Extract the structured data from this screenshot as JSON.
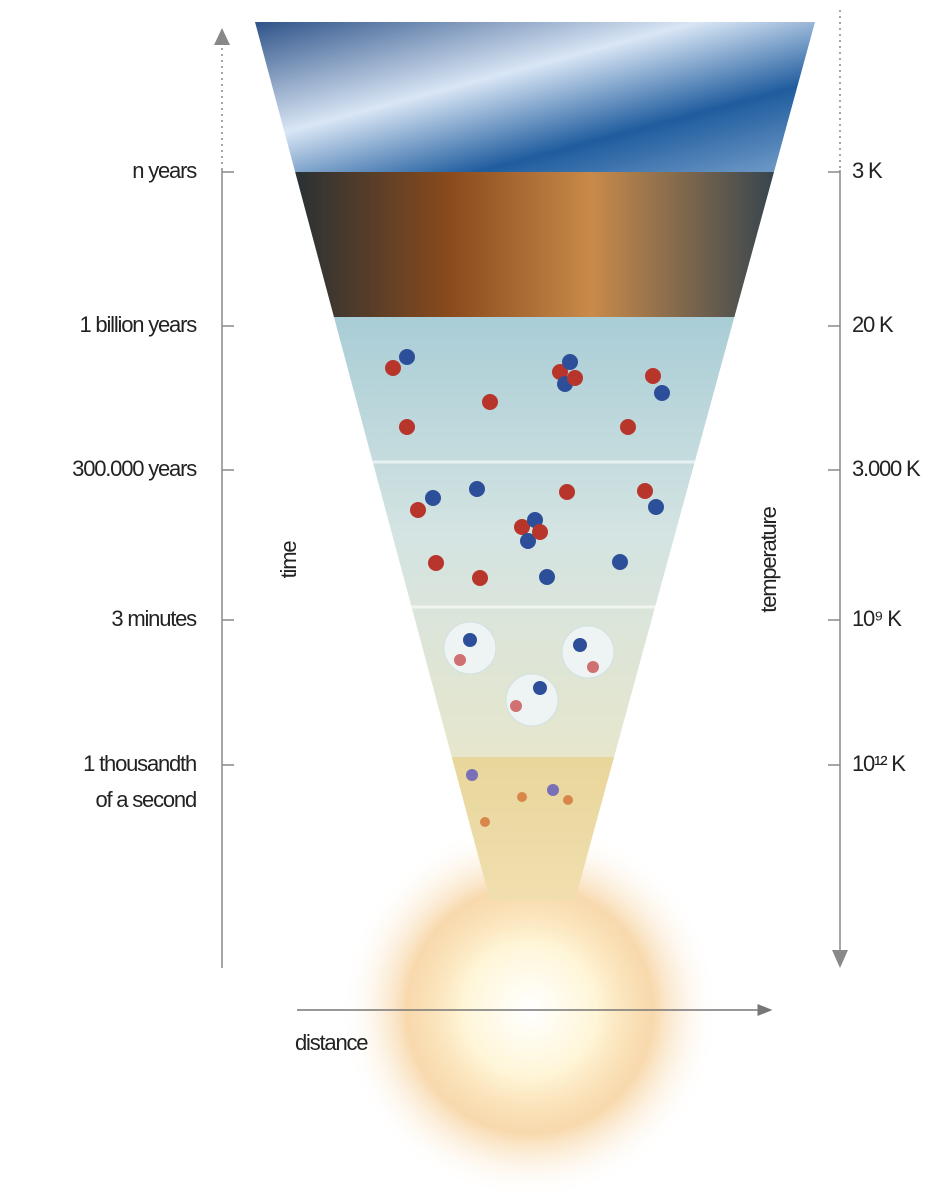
{
  "time_axis": {
    "title": "time",
    "labels": [
      [
        "n years"
      ],
      [
        "1 billion years"
      ],
      [
        "300.000 years"
      ],
      [
        "3 minutes"
      ],
      [
        "1 thousandth",
        "of a second"
      ]
    ]
  },
  "temperature_axis": {
    "title": "temperature",
    "labels": [
      "3 K",
      "20 K",
      "3.000 K",
      "10⁹ K",
      "10¹² K"
    ]
  },
  "distance_axis": {
    "title": "distance"
  }
}
